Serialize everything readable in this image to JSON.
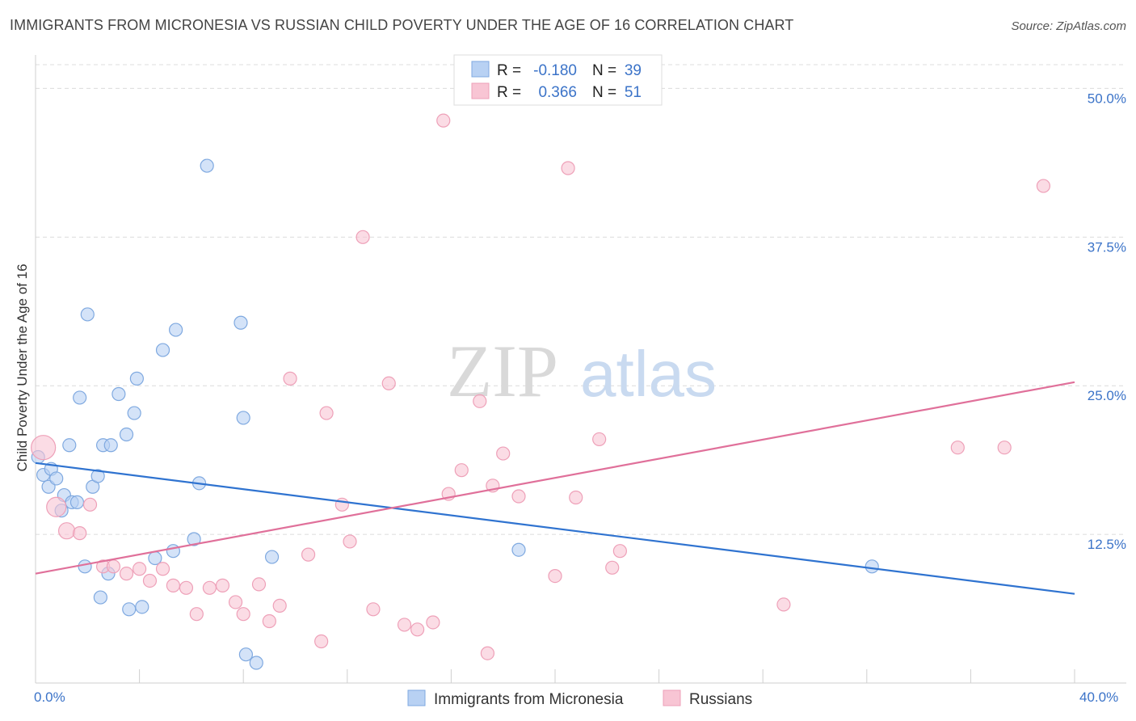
{
  "header": {
    "title": "IMMIGRANTS FROM MICRONESIA VS RUSSIAN CHILD POVERTY UNDER THE AGE OF 16 CORRELATION CHART",
    "source": "Source: ZipAtlas.com"
  },
  "watermark": {
    "zip": "ZIP",
    "atlas": "atlas"
  },
  "colors": {
    "blue_fill": "#b8d1f3",
    "blue_stroke": "#7fa9e0",
    "blue_line": "#2f73d0",
    "pink_fill": "#f8c5d4",
    "pink_stroke": "#eea0b8",
    "pink_line": "#e0709a",
    "grid": "#dcdcdc",
    "tick_text": "#3b73c8"
  },
  "legend": {
    "rows": [
      {
        "r_label": "R =",
        "r_value": "-0.180",
        "n_label": "N =",
        "n_value": "39"
      },
      {
        "r_label": "R =",
        "r_value": "0.366",
        "n_label": "N =",
        "n_value": "51"
      }
    ]
  },
  "chart_data": {
    "type": "scatter",
    "title": "IMMIGRANTS FROM MICRONESIA VS RUSSIAN CHILD POVERTY UNDER THE AGE OF 16 CORRELATION CHART",
    "xlabel": "",
    "ylabel": "Child Poverty Under the Age of 16",
    "xlim": [
      0,
      40
    ],
    "ylim": [
      0,
      52
    ],
    "x_tick_labels": [
      "0.0%",
      "40.0%"
    ],
    "y_ticks": [
      12.5,
      25.0,
      37.5,
      50.0
    ],
    "y_tick_labels": [
      "12.5%",
      "25.0%",
      "37.5%",
      "50.0%"
    ],
    "grid": true,
    "legend_placement": "top-center",
    "series": [
      {
        "name": "Immigrants from Micronesia",
        "color": "#b8d1f3",
        "trend": {
          "x": [
            0,
            40
          ],
          "y": [
            18.5,
            7.5
          ]
        },
        "points": [
          [
            0.1,
            19.0
          ],
          [
            0.3,
            17.5
          ],
          [
            0.5,
            16.5
          ],
          [
            0.6,
            18.0
          ],
          [
            0.8,
            17.2
          ],
          [
            1.0,
            14.5
          ],
          [
            1.1,
            15.8
          ],
          [
            1.3,
            20.0
          ],
          [
            1.4,
            15.2
          ],
          [
            1.6,
            15.2
          ],
          [
            1.7,
            24.0
          ],
          [
            1.9,
            9.8
          ],
          [
            2.0,
            31.0
          ],
          [
            2.2,
            16.5
          ],
          [
            2.4,
            17.4
          ],
          [
            2.5,
            7.2
          ],
          [
            2.6,
            20.0
          ],
          [
            2.9,
            20.0
          ],
          [
            2.8,
            9.2
          ],
          [
            3.2,
            24.3
          ],
          [
            3.5,
            20.9
          ],
          [
            3.6,
            6.2
          ],
          [
            3.8,
            22.7
          ],
          [
            3.9,
            25.6
          ],
          [
            4.1,
            6.4
          ],
          [
            4.6,
            10.5
          ],
          [
            4.9,
            28.0
          ],
          [
            5.3,
            11.1
          ],
          [
            5.4,
            29.7
          ],
          [
            6.1,
            12.1
          ],
          [
            6.3,
            16.8
          ],
          [
            6.6,
            43.5
          ],
          [
            7.9,
            30.3
          ],
          [
            8.0,
            22.3
          ],
          [
            8.1,
            2.4
          ],
          [
            8.5,
            1.7
          ],
          [
            9.1,
            10.6
          ],
          [
            18.6,
            11.2
          ],
          [
            32.2,
            9.8
          ]
        ]
      },
      {
        "name": "Russians",
        "color": "#f8c5d4",
        "trend": {
          "x": [
            0,
            40
          ],
          "y": [
            9.2,
            25.3
          ]
        },
        "points": [
          [
            0.3,
            19.8
          ],
          [
            0.8,
            14.8
          ],
          [
            1.2,
            12.8
          ],
          [
            1.7,
            12.6
          ],
          [
            2.1,
            15.0
          ],
          [
            2.6,
            9.8
          ],
          [
            3.0,
            9.8
          ],
          [
            3.5,
            9.2
          ],
          [
            4.0,
            9.6
          ],
          [
            4.4,
            8.6
          ],
          [
            4.9,
            9.6
          ],
          [
            5.3,
            8.2
          ],
          [
            5.8,
            8.0
          ],
          [
            6.2,
            5.8
          ],
          [
            6.7,
            8.0
          ],
          [
            7.2,
            8.2
          ],
          [
            7.7,
            6.8
          ],
          [
            8.0,
            5.8
          ],
          [
            8.6,
            8.3
          ],
          [
            9.0,
            5.2
          ],
          [
            9.4,
            6.5
          ],
          [
            9.8,
            25.6
          ],
          [
            10.5,
            10.8
          ],
          [
            11.0,
            3.5
          ],
          [
            11.2,
            22.7
          ],
          [
            11.8,
            15.0
          ],
          [
            12.1,
            11.9
          ],
          [
            12.6,
            37.5
          ],
          [
            13.0,
            6.2
          ],
          [
            13.6,
            25.2
          ],
          [
            14.2,
            4.9
          ],
          [
            14.7,
            4.5
          ],
          [
            15.3,
            5.1
          ],
          [
            15.7,
            47.3
          ],
          [
            15.9,
            15.9
          ],
          [
            16.4,
            17.9
          ],
          [
            17.1,
            23.7
          ],
          [
            17.4,
            2.5
          ],
          [
            17.6,
            16.6
          ],
          [
            18.0,
            19.3
          ],
          [
            18.6,
            15.7
          ],
          [
            20.0,
            9.0
          ],
          [
            20.5,
            43.3
          ],
          [
            20.8,
            15.6
          ],
          [
            21.7,
            20.5
          ],
          [
            22.2,
            9.7
          ],
          [
            22.5,
            11.1
          ],
          [
            28.8,
            6.6
          ],
          [
            35.5,
            19.8
          ],
          [
            37.3,
            19.8
          ],
          [
            38.8,
            41.8
          ]
        ]
      }
    ]
  },
  "bottom_legend": {
    "items": [
      {
        "label": "Immigrants from Micronesia"
      },
      {
        "label": "Russians"
      }
    ]
  }
}
